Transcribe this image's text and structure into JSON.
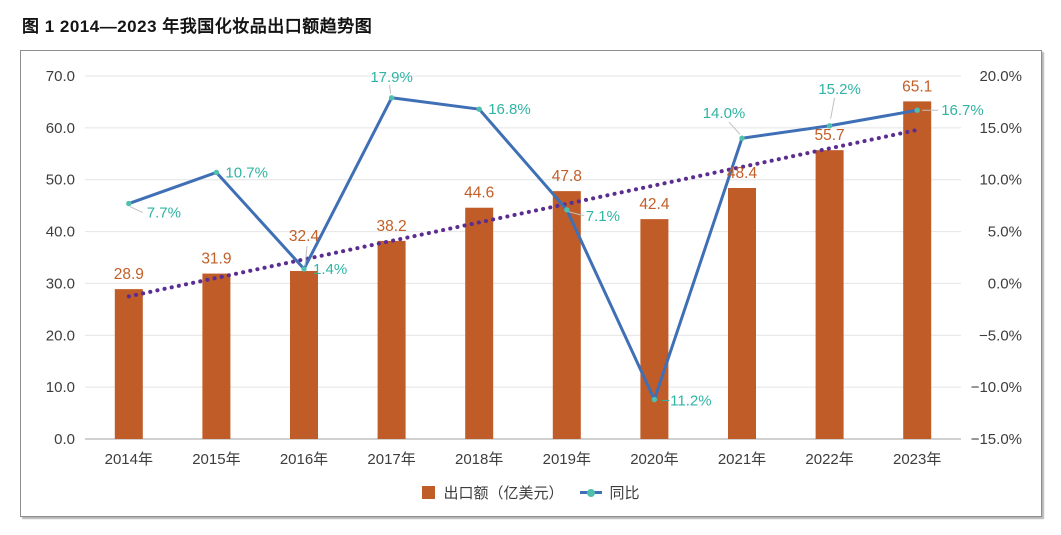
{
  "title": "图 1 2014—2023 年我国化妆品出口额趋势图",
  "colors": {
    "bar": "#C05C28",
    "bar_label": "#C25E28",
    "line": "#3F6FB5",
    "line_label": "#2FB4A3",
    "marker": "#4FC0AE",
    "trend": "#5C2D91",
    "axis_text": "#3D3D3D",
    "grid": "#E4E4E4",
    "baseline": "#C2C2C2",
    "leader": "#C0C0C0",
    "panel_border": "#8E8E8E"
  },
  "chart_data": {
    "type": "bar+line combo",
    "title": "图 1 2014—2023 年我国化妆品出口额趋势图",
    "categories": [
      "2014年",
      "2015年",
      "2016年",
      "2017年",
      "2018年",
      "2019年",
      "2020年",
      "2021年",
      "2022年",
      "2023年"
    ],
    "series": [
      {
        "name": "出口额（亿美元）",
        "type": "bar",
        "axis": "left",
        "values": [
          28.9,
          31.9,
          32.4,
          38.2,
          44.6,
          47.8,
          42.4,
          48.4,
          55.7,
          65.1
        ],
        "labels": [
          "28.9",
          "31.9",
          "32.4",
          "38.2",
          "44.6",
          "47.8",
          "42.4",
          "48.4",
          "55.7",
          "65.1"
        ]
      },
      {
        "name": "同比",
        "type": "line",
        "axis": "right",
        "values": [
          7.7,
          10.7,
          1.4,
          17.9,
          16.8,
          7.1,
          -11.2,
          14.0,
          15.2,
          16.7
        ],
        "labels": [
          "7.7%",
          "10.7%",
          "1.4%",
          "17.9%",
          "16.8%",
          "7.1%",
          "−11.2%",
          "14.0%",
          "15.2%",
          "16.7%"
        ]
      }
    ],
    "trend": {
      "type": "dotted linear trend of bars",
      "axis": "left",
      "start": 27.5,
      "end": 59.6
    },
    "left_axis": {
      "min": 0,
      "max": 70,
      "step": 10,
      "tick_labels": [
        "0.0",
        "10.0",
        "20.0",
        "30.0",
        "40.0",
        "50.0",
        "60.0",
        "70.0"
      ]
    },
    "right_axis": {
      "min": -15,
      "max": 20,
      "step": 5,
      "tick_labels": [
        "−15.0%",
        "−10.0%",
        "−5.0%",
        "0.0%",
        "5.0%",
        "10.0%",
        "15.0%",
        "20.0%"
      ]
    },
    "grid": true,
    "legend_position": "bottom-center",
    "legend": [
      {
        "label": "出口额（亿美元）",
        "swatch": "bar"
      },
      {
        "label": "同比",
        "swatch": "line"
      }
    ]
  }
}
